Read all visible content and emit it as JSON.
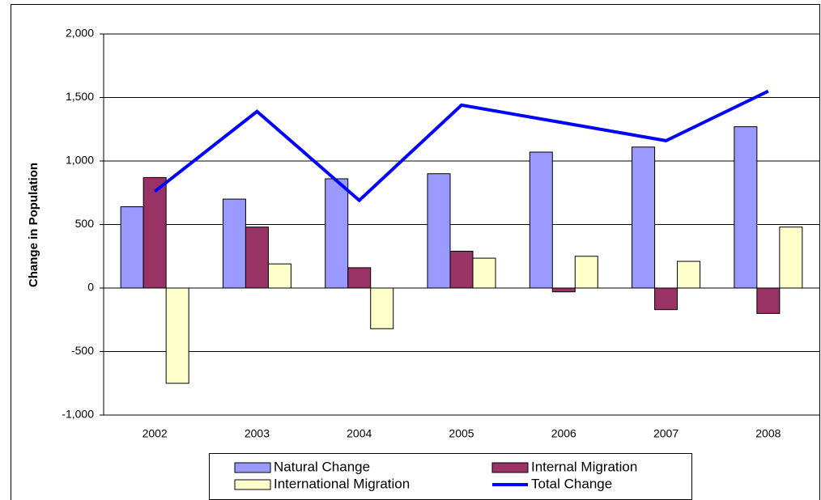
{
  "chart_data": {
    "type": "bar",
    "y_label": "Change in Population",
    "categories": [
      "2002",
      "2003",
      "2004",
      "2005",
      "2006",
      "2007",
      "2008"
    ],
    "series": [
      {
        "name": "Natural Change",
        "type": "bar",
        "color": "#9999ff",
        "values": [
          640,
          700,
          860,
          900,
          1070,
          1110,
          1270
        ]
      },
      {
        "name": "Internal Migration",
        "type": "bar",
        "color": "#993366",
        "values": [
          870,
          480,
          160,
          290,
          -30,
          -170,
          -200
        ]
      },
      {
        "name": "International Migration",
        "type": "bar",
        "color": "#ffffcc",
        "values": [
          -750,
          190,
          -320,
          235,
          250,
          210,
          480
        ]
      },
      {
        "name": "Total Change",
        "type": "line",
        "color": "#0000ff",
        "values": [
          760,
          1390,
          690,
          1440,
          1300,
          1160,
          1550
        ]
      }
    ],
    "ylim": [
      -1000,
      2000
    ],
    "yticks": [
      {
        "value": -1000,
        "label": "-1,000"
      },
      -500,
      0,
      500,
      {
        "value": 1000,
        "label": "1,000"
      },
      {
        "value": 1500,
        "label": "1,500"
      },
      {
        "value": 2000,
        "label": "2,000"
      }
    ],
    "grid": true
  }
}
